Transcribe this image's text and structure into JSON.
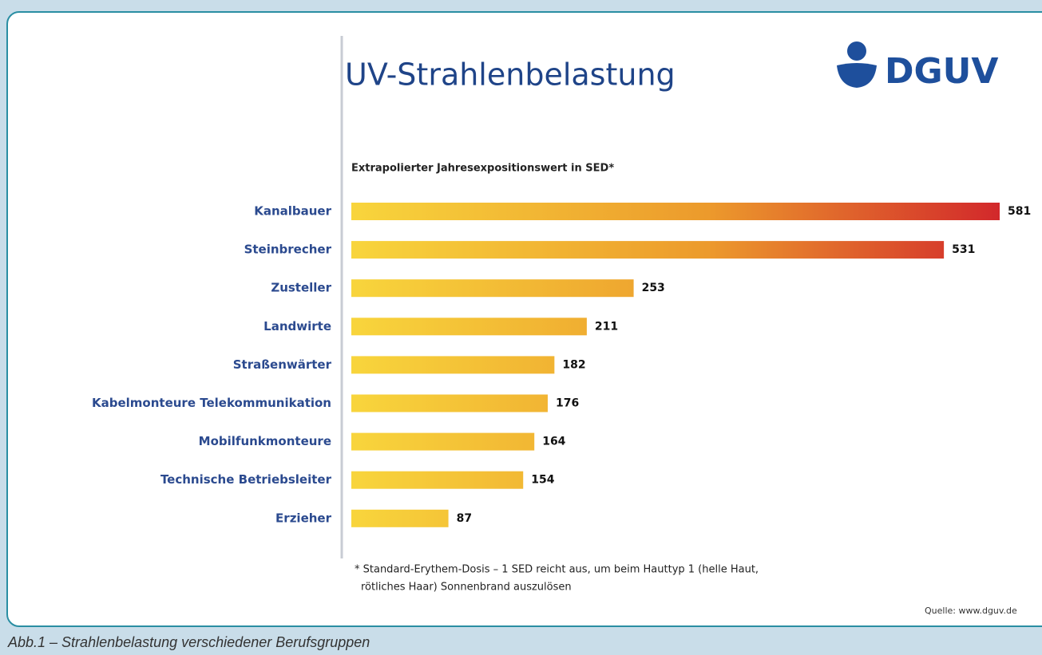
{
  "chart_data": {
    "type": "bar",
    "orientation": "horizontal",
    "title": "UV-Strahlenbelastung",
    "logo": "DGUV",
    "subtitle": "Extrapolierter Jahresexpositionswert in SED*",
    "categories": [
      "Kanalbauer",
      "Steinbrecher",
      "Zusteller",
      "Landwirte",
      "Straßenwärter",
      "Kabelmonteure Telekommunikation",
      "Mobilfunkmonteure",
      "Technische Betriebsleiter",
      "Erzieher"
    ],
    "values": [
      581,
      531,
      253,
      211,
      182,
      176,
      164,
      154,
      87
    ],
    "colors": [
      "#f8d53c",
      "#ec9a2c",
      "#d2282b"
    ],
    "footnote": [
      "* Standard-Erythem-Dosis – 1 SED reicht aus, um beim Hauttyp 1 (helle Haut,",
      "rötliches Haar) Sonnenbrand auszulösen"
    ],
    "source": "Quelle: www.dguv.de"
  },
  "caption": "Abb.1 – Strahlenbelastung verschiedener Berufsgruppen"
}
